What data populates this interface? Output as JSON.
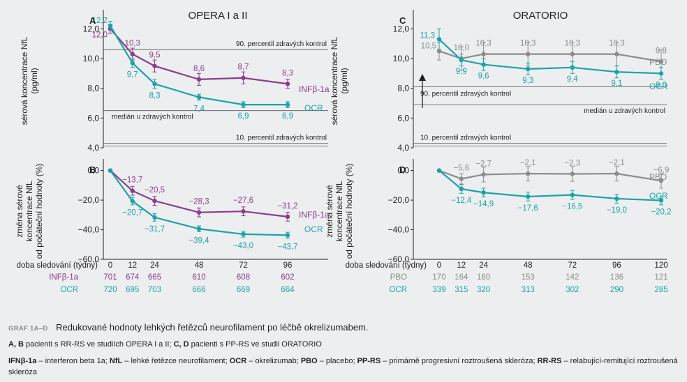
{
  "colors": {
    "infb": "#8b3d8e",
    "ocr": "#1aa3a8",
    "pbo": "#8c8c8c",
    "axis": "#231f20",
    "bg": "#edeeef"
  },
  "panels": {
    "A": {
      "letter": "A",
      "heading": "OPERA I a II",
      "ylabel_lines": [
        "sérová koncentrace NfL",
        "(pg/ml)"
      ],
      "ref_lines": [
        {
          "label": "90. percentil zdravých kontrol"
        },
        {
          "label": "medián u zdravých kontrol"
        },
        {
          "label": "10. percentil zdravých kontrol"
        }
      ]
    },
    "B": {
      "letter": "B",
      "ylabel_lines": [
        "změna sérové",
        "koncentrace NfL",
        "od počáteční hodnoty (%)"
      ]
    },
    "C": {
      "letter": "C",
      "heading": "ORATORIO",
      "ylabel_lines": [
        "sérová koncentrace NfL",
        "(pg/ml)"
      ],
      "ref_lines": [
        {
          "label": "90. percentil zdravých kontrol"
        },
        {
          "label": "medián u zdravých kontrol"
        },
        {
          "label": "10. percentil zdravých kontrol"
        }
      ]
    },
    "D": {
      "letter": "D",
      "ylabel_lines": [
        "změna sérové",
        "koncentrace NfL",
        "od počáteční hodnoty (%)"
      ]
    }
  },
  "chart_data": [
    {
      "type": "line",
      "panel": "A",
      "x": [
        0,
        12,
        24,
        48,
        72,
        96
      ],
      "ylim": [
        4.0,
        13.0
      ],
      "yticks": [
        "4,0",
        "6,0",
        "8,0",
        "10,0",
        "12,0"
      ],
      "reference_values": [
        10.6,
        6.5,
        4.3
      ],
      "series": [
        {
          "name": "INFβ-1a",
          "values": [
            12.0,
            10.3,
            9.5,
            8.6,
            8.7,
            8.3
          ],
          "labels": [
            "12,0",
            "10,3",
            "9,5",
            "8,6",
            "8,7",
            "8,3"
          ],
          "err": [
            0.3,
            0.4,
            0.4,
            0.4,
            0.4,
            0.3
          ]
        },
        {
          "name": "OCR",
          "values": [
            12.2,
            9.7,
            8.3,
            7.4,
            6.9,
            6.9
          ],
          "labels": [
            "12,2",
            "9,7",
            "8,3",
            "7,4",
            "6,9",
            "6,9"
          ],
          "err": [
            0.3,
            0.3,
            0.3,
            0.2,
            0.2,
            0.2
          ]
        }
      ]
    },
    {
      "type": "line",
      "panel": "B",
      "x": [
        0,
        12,
        24,
        48,
        72,
        96
      ],
      "ylim": [
        -60,
        5
      ],
      "yticks": [
        "−60,0",
        "−40,0",
        "−20,0",
        "0,0"
      ],
      "series": [
        {
          "name": "INFβ-1a",
          "values": [
            0,
            -13.7,
            -20.5,
            -28.3,
            -27.6,
            -31.2
          ],
          "labels": [
            "",
            "−13,7",
            "−20,5",
            "−28,3",
            "−27,6",
            "−31,2"
          ],
          "err": [
            0,
            3,
            3,
            3,
            3,
            3
          ]
        },
        {
          "name": "OCR",
          "values": [
            0,
            -20.7,
            -31.7,
            -39.4,
            -43.0,
            -43.7
          ],
          "labels": [
            "",
            "−20,7",
            "−31,7",
            "−39,4",
            "−43,0",
            "−43,7"
          ],
          "err": [
            0,
            2.5,
            2.5,
            2,
            2,
            2
          ]
        }
      ]
    },
    {
      "type": "line",
      "panel": "C",
      "x": [
        0,
        12,
        24,
        48,
        72,
        96,
        120
      ],
      "ylim": [
        4.0,
        13.0
      ],
      "yticks": [
        "4,0",
        "6,0",
        "8,0",
        "10,0",
        "12,0"
      ],
      "reference_values": [
        8.1,
        6.9,
        4.3
      ],
      "series": [
        {
          "name": "PBO",
          "values": [
            10.5,
            10.0,
            10.3,
            10.3,
            10.3,
            10.3,
            9.8
          ],
          "labels": [
            "10,5",
            "10,0",
            "10,3",
            "10,3",
            "10,3",
            "10,3",
            "9,8"
          ],
          "err": [
            0.6,
            0.8,
            0.8,
            0.8,
            0.8,
            0.8,
            0.8
          ]
        },
        {
          "name": "OCR",
          "values": [
            11.3,
            9.9,
            9.6,
            9.3,
            9.4,
            9.1,
            9.0
          ],
          "labels": [
            "11,3",
            "9,9",
            "9,6",
            "9,3",
            "9,4",
            "9,1",
            "9,0"
          ],
          "err": [
            0.7,
            0.4,
            0.4,
            0.4,
            0.4,
            0.4,
            0.4
          ]
        }
      ]
    },
    {
      "type": "line",
      "panel": "D",
      "x": [
        0,
        12,
        24,
        48,
        72,
        96,
        120
      ],
      "ylim": [
        -60,
        5
      ],
      "yticks": [
        "−60,0",
        "−40,0",
        "−20,0",
        "0,0"
      ],
      "series": [
        {
          "name": "PBO",
          "values": [
            0,
            -5.6,
            -2.7,
            -2.1,
            -2.3,
            -2.1,
            -6.9
          ],
          "labels": [
            "",
            "−5,6",
            "−2,7",
            "−2,1",
            "−2,3",
            "−2,1",
            "−6,9"
          ],
          "err": [
            0,
            3.5,
            5,
            5,
            5,
            5,
            5
          ]
        },
        {
          "name": "OCR",
          "values": [
            0,
            -12.4,
            -14.9,
            -17.6,
            -16.5,
            -19.0,
            -20.2
          ],
          "labels": [
            "",
            "−12,4",
            "−14,9",
            "−17,6",
            "−16,5",
            "−19,0",
            "−20,2"
          ],
          "err": [
            0,
            3,
            3,
            3,
            3,
            3,
            3
          ]
        }
      ]
    }
  ],
  "follow_table": {
    "left": {
      "header": "doba sledování (týdny)",
      "weeks": [
        "0",
        "12",
        "24",
        "48",
        "72",
        "96"
      ],
      "rows": [
        {
          "name": "INFβ-1a",
          "values": [
            "701",
            "674",
            "665",
            "610",
            "608",
            "602"
          ]
        },
        {
          "name": "OCR",
          "values": [
            "720",
            "695",
            "703",
            "666",
            "669",
            "664"
          ]
        }
      ]
    },
    "right": {
      "header": "doba sledování (týdny)",
      "weeks": [
        "0",
        "12",
        "24",
        "48",
        "72",
        "96",
        "120"
      ],
      "rows": [
        {
          "name": "PBO",
          "values": [
            "170",
            "164",
            "160",
            "153",
            "142",
            "136",
            "121"
          ]
        },
        {
          "name": "OCR",
          "values": [
            "339",
            "315",
            "320",
            "313",
            "302",
            "290",
            "285"
          ]
        }
      ]
    }
  },
  "caption": {
    "label": "GRAF 1A–D",
    "title": "Redukované hodnoty lehkých řetězců neurofilament po léčbě okrelizumabem.",
    "line1_bold_a": "A, B",
    "line1_text_a": " pacienti s RR-RS ve studiích OPERA I a II; ",
    "line1_bold_b": "C, D",
    "line1_text_b": " pacienti s PP-RS ve studii ORATORIO",
    "line2_parts": [
      {
        "b": "IFNβ-1a",
        "t": " – interferon beta 1a; "
      },
      {
        "b": "NfL",
        "t": " – lehké řetězce neurofilament; "
      },
      {
        "b": "OCR",
        "t": " – okrelizumab; "
      },
      {
        "b": "PBO",
        "t": " – placebo; "
      },
      {
        "b": "PP-RS",
        "t": " – primárně progresivní roztroušená skleróza; "
      },
      {
        "b": "RR-RS",
        "t": " – relabující-remitující roztroušená skleróza"
      }
    ]
  }
}
